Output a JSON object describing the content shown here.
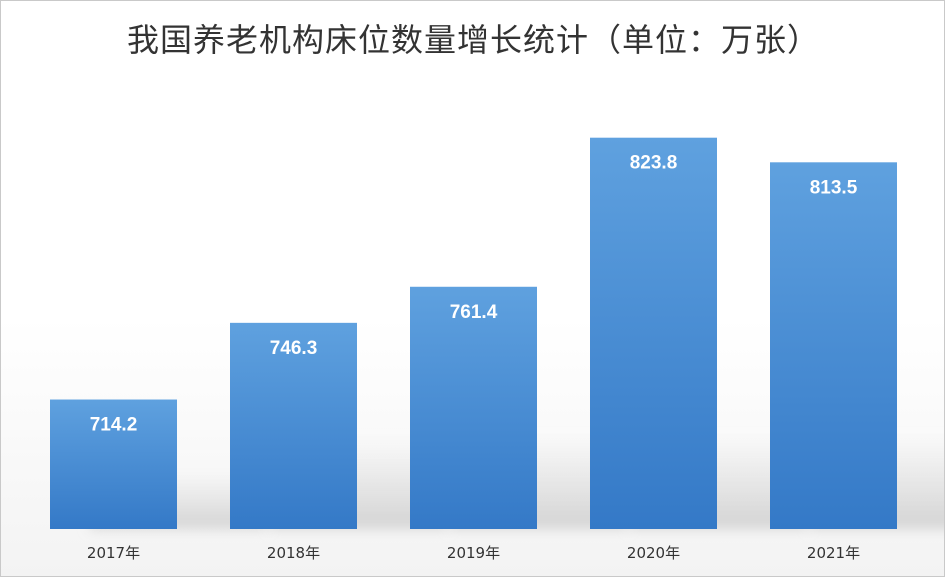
{
  "chart_data": {
    "type": "bar",
    "title": "我国养老机构床位数量增长统计（单位：万张）",
    "categories": [
      "2017年",
      "2018年",
      "2019年",
      "2020年",
      "2021年"
    ],
    "values": [
      714.2,
      746.3,
      761.4,
      823.8,
      813.5
    ],
    "data_labels": [
      "714.2",
      "746.3",
      "761.4",
      "823.8",
      "813.5"
    ],
    "xlabel": "",
    "ylabel": "",
    "ylim": [
      660,
      840
    ],
    "grid": false,
    "legend": "none",
    "bar_color": "#4a90d6"
  }
}
